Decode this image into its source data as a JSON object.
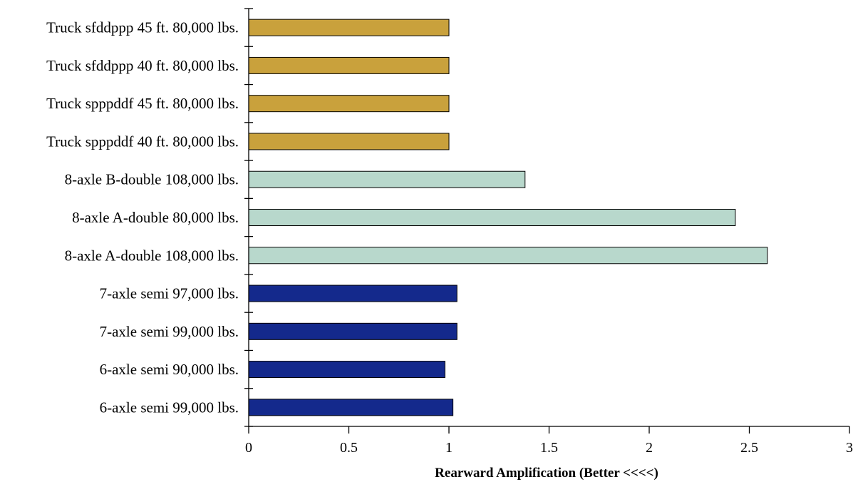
{
  "chart_data": {
    "type": "bar",
    "orientation": "horizontal",
    "categories": [
      "Truck sfddppp 45 ft. 80,000 lbs.",
      "Truck sfddppp 40 ft. 80,000 lbs.",
      "Truck spppddf 45 ft. 80,000 lbs.",
      "Truck spppddf 40 ft. 80,000 lbs.",
      "8-axle B-double 108,000 lbs.",
      "8-axle A-double 80,000 lbs.",
      "8-axle A-double 108,000 lbs.",
      "7-axle semi 97,000 lbs.",
      "7-axle semi 99,000 lbs.",
      "6-axle semi 90,000 lbs.",
      "6-axle semi 99,000 lbs."
    ],
    "values": [
      1.0,
      1.0,
      1.0,
      1.0,
      1.38,
      2.43,
      2.59,
      1.04,
      1.04,
      0.98,
      1.02
    ],
    "colors": [
      "#C9A13C",
      "#C9A13C",
      "#C9A13C",
      "#C9A13C",
      "#B8D8CC",
      "#B8D8CC",
      "#B8D8CC",
      "#14298C",
      "#14298C",
      "#14298C",
      "#14298C"
    ],
    "xlabel": "Rearward Amplification (Better <<<<)",
    "ylabel": "",
    "title": "",
    "xlim": [
      0,
      3
    ],
    "xticks": [
      0,
      0.5,
      1,
      1.5,
      2,
      2.5,
      3
    ],
    "xtick_labels": [
      "0",
      "0.5",
      "1",
      "1.5",
      "2",
      "2.5",
      "3"
    ],
    "grid": false,
    "legend": "none"
  }
}
